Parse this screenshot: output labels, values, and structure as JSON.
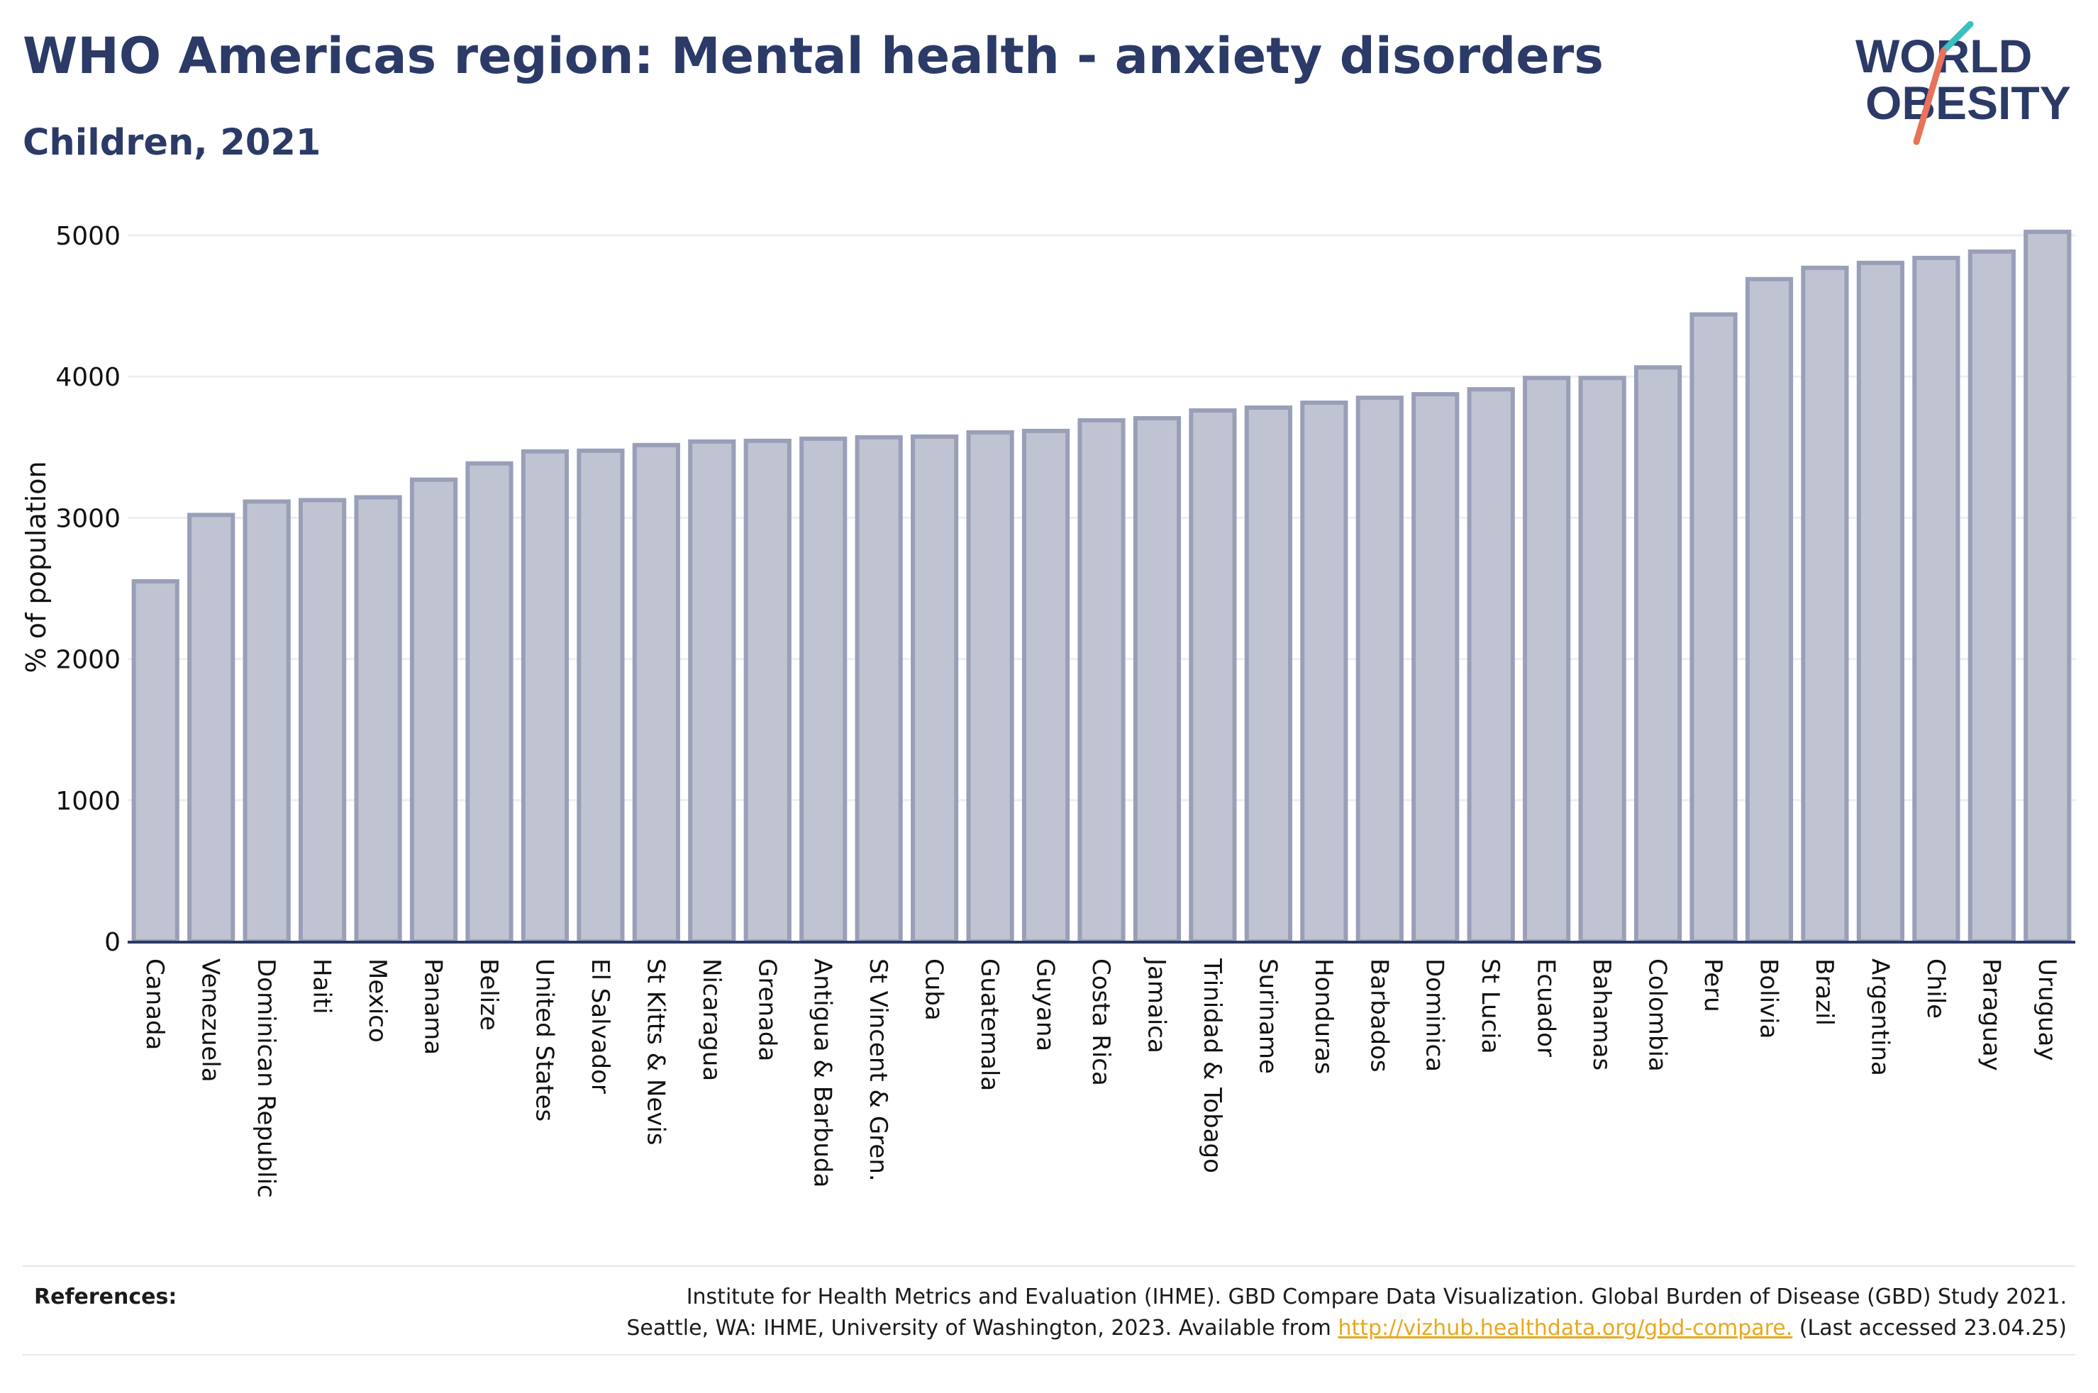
{
  "header": {
    "title": "WHO Americas region: Mental health - anxiety disorders",
    "subtitle": "Children, 2021"
  },
  "logo": {
    "line1": "WORLD",
    "line2": "OBESITY",
    "colors": {
      "text": "#2b3a67",
      "slash_teal": "#3bbfbf",
      "slash_coral": "#e8735a"
    }
  },
  "chart_data": {
    "type": "bar",
    "ylabel": "% of population",
    "xlabel": "",
    "ylim": [
      0,
      5000
    ],
    "yticks": [
      0,
      1000,
      2000,
      3000,
      4000,
      5000
    ],
    "grid": true,
    "legend": "none",
    "colors": {
      "bar_fill": "#c0c3d1",
      "bar_stroke": "#9a9fb8",
      "axis": "#2b3a67",
      "grid": "#eeeff3"
    },
    "categories": [
      "Canada",
      "Venezuela",
      "Dominican Republic",
      "Haiti",
      "Mexico",
      "Panama",
      "Belize",
      "United States",
      "El Salvador",
      "St Kitts & Nevis",
      "Nicaragua",
      "Grenada",
      "Antigua & Barbuda",
      "St Vincent & Gren.",
      "Cuba",
      "Guatemala",
      "Guyana",
      "Costa Rica",
      "Jamaica",
      "Trinidad & Tobago",
      "Suriname",
      "Honduras",
      "Barbados",
      "Dominica",
      "St Lucia",
      "Ecuador",
      "Bahamas",
      "Colombia",
      "Peru",
      "Bolivia",
      "Brazil",
      "Argentina",
      "Chile",
      "Paraguay",
      "Uruguay"
    ],
    "values": [
      2550,
      3020,
      3115,
      3125,
      3145,
      3270,
      3385,
      3470,
      3475,
      3515,
      3540,
      3545,
      3560,
      3570,
      3575,
      3605,
      3615,
      3690,
      3705,
      3760,
      3780,
      3815,
      3850,
      3875,
      3910,
      3990,
      3990,
      4065,
      4440,
      4690,
      4770,
      4805,
      4840,
      4885,
      5025
    ]
  },
  "references": {
    "label": "References:",
    "line1": "Institute for Health Metrics and Evaluation (IHME). GBD Compare Data Visualization. Global Burden of Disease (GBD) Study 2021.",
    "line2_prefix": "Seattle, WA: IHME, University of Washington, 2023. Available from ",
    "link": "http://vizhub.healthdata.org/gbd-compare.",
    "line2_suffix": " (Last accessed 23.04.25)"
  }
}
